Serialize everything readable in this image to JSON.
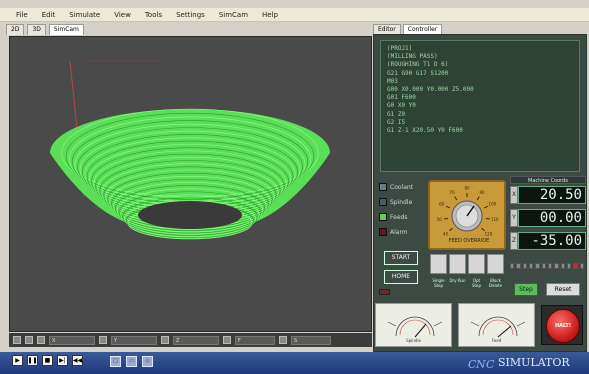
{
  "menu": [
    "File",
    "Edit",
    "Simulate",
    "View",
    "Tools",
    "Settings",
    "SimCam",
    "Help"
  ],
  "view_tabs": [
    "2D",
    "3D",
    "SimCam"
  ],
  "right_tabs": [
    "Editor",
    "Controller"
  ],
  "gcode_lines": [
    "(PROJ1)",
    "(MILLING PASS)",
    "(ROUGHING T1 D 6)",
    "",
    "G21 G90 G17 S1200",
    "M03",
    "G00 X0.000 Y0.000 Z5.000",
    "G01 F600",
    "G0 X0 Y0",
    "G1 Z0",
    "G2 I5",
    "G1 Z-1 X20.50 Y0 F600"
  ],
  "status_lights": [
    {
      "label": "Coolant",
      "color": "#6a7c8a"
    },
    {
      "label": "Spindle",
      "color": "#4a5a68"
    },
    {
      "label": "Feeds",
      "color": "#5fd05f"
    },
    {
      "label": "Alarm",
      "color": "#5a1a1a"
    }
  ],
  "dial": {
    "label": "FEED OVERRIDE",
    "tick_labels": [
      "40",
      "50",
      "60",
      "70",
      "80",
      "90",
      "100",
      "110",
      "120"
    ]
  },
  "coords": {
    "header": "Machine Coords",
    "rows": [
      {
        "axis": "X",
        "value": "20.50"
      },
      {
        "axis": "Y",
        "value": "00.00"
      },
      {
        "axis": "Z",
        "value": "-35.00"
      }
    ]
  },
  "buttons": {
    "start": "START",
    "home": "HOME",
    "step": "Step",
    "reset": "Reset",
    "halt": "HALT!"
  },
  "keypad_labels": [
    "Single Step",
    "Dry Run",
    "Opt Stop",
    "Block Delete"
  ],
  "jog_level": 0.95,
  "gauges": [
    {
      "label": "Spindle"
    },
    {
      "label": "Feed"
    }
  ],
  "bottom": {
    "transport": [
      "play-icon",
      "pause-icon",
      "stop-icon",
      "step-icon",
      "rewind-icon"
    ],
    "view_buttons": [
      "top-view-icon",
      "side-view-icon",
      "iso-view-icon"
    ],
    "brand": "SIMULATOR"
  },
  "viewport_fields": [
    "X",
    "Y",
    "Z",
    "F",
    "S"
  ],
  "colors": {
    "toolpath": "#5ef05a",
    "viewport_bg": "#4a4a4a",
    "panel_bg": "#3d4a44",
    "readout_bg": "#0c1410"
  }
}
